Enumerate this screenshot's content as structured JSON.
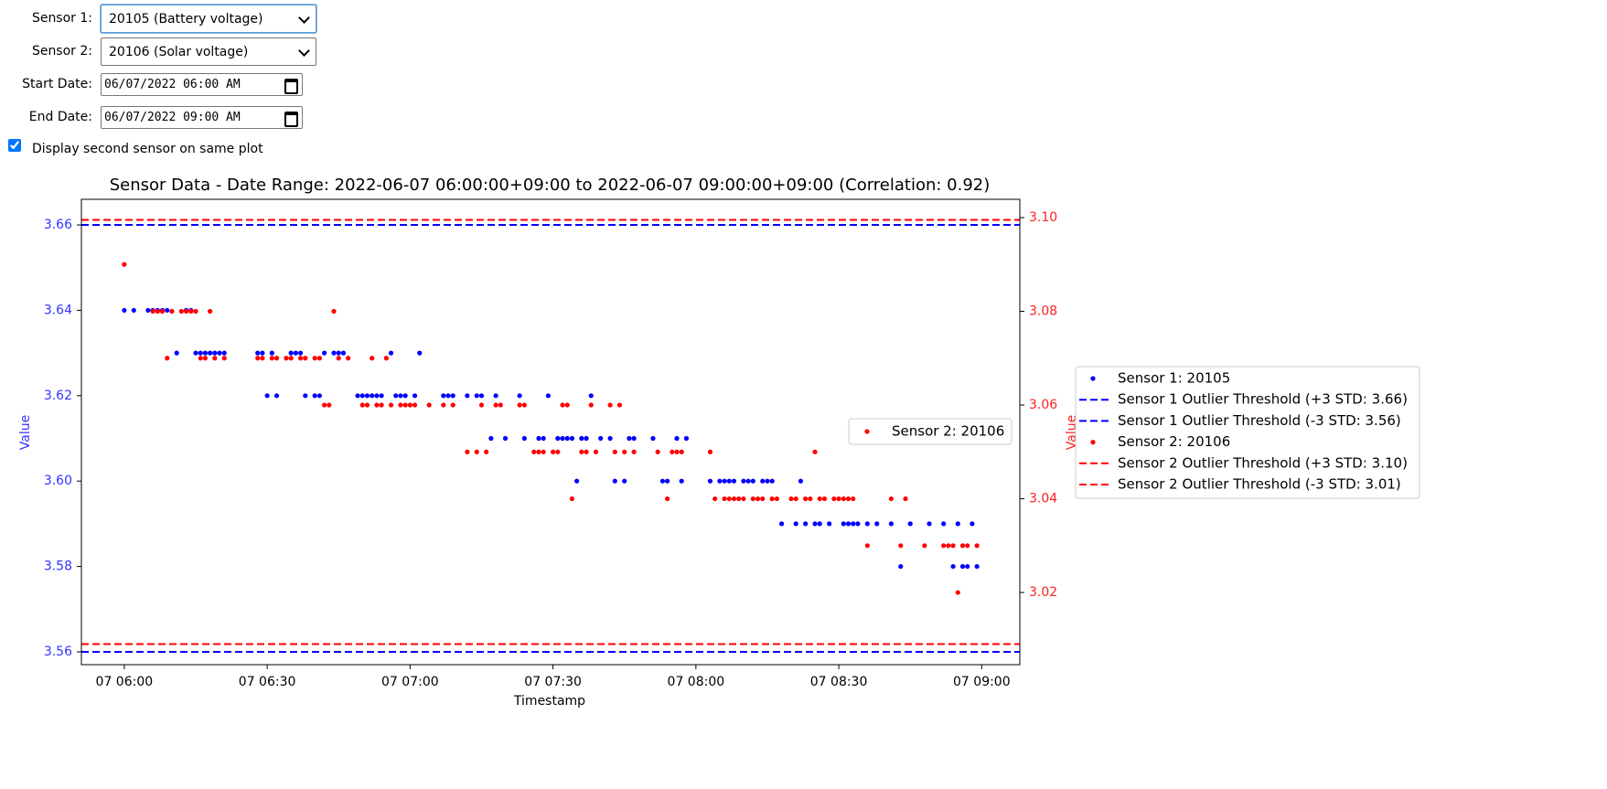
{
  "form": {
    "sensor1_label": "Sensor 1:",
    "sensor1_value": "20105 (Battery voltage)",
    "sensor2_label": "Sensor 2:",
    "sensor2_value": "20106 (Solar voltage)",
    "start_label": "Start Date:",
    "start_value": "06/07/2022 06:00 AM",
    "end_label": "End Date:",
    "end_value": "06/07/2022 09:00 AM",
    "checkbox_label": "Display second sensor on same plot"
  },
  "chart_data": {
    "type": "scatter",
    "title": "Sensor Data - Date Range: 2022-06-07 06:00:00+09:00 to 2022-06-07 09:00:00+09:00 (Correlation: 0.92)",
    "x_label": "Timestamp",
    "y_label": "Value",
    "y2_label": "Value",
    "xlim": [
      "05:51",
      "09:08"
    ],
    "xticks": [
      {
        "value": "06:00",
        "label": "07 06:00"
      },
      {
        "value": "06:30",
        "label": "07 06:30"
      },
      {
        "value": "07:00",
        "label": "07 07:00"
      },
      {
        "value": "07:30",
        "label": "07 07:30"
      },
      {
        "value": "08:00",
        "label": "07 08:00"
      },
      {
        "value": "08:30",
        "label": "07 08:30"
      },
      {
        "value": "09:00",
        "label": "07 09:00"
      }
    ],
    "ylim": [
      3.557,
      3.666
    ],
    "yticks": [
      3.56,
      3.58,
      {
        "value": 3.6,
        "label": "3.60"
      },
      3.62,
      3.64,
      3.66
    ],
    "y_color": "#3333ff",
    "y2lim": [
      3.0046,
      3.1039
    ],
    "y2ticks": [
      3.02,
      3.04,
      3.06,
      3.08,
      {
        "value": 3.1,
        "label": "3.10"
      }
    ],
    "y2_color": "#ff2020",
    "series": [
      {
        "name": "Sensor 1: 20105",
        "color": "#0000ff",
        "axis": "y",
        "x": [
          "06:00",
          "06:02",
          "06:05",
          "06:06",
          "06:07",
          "06:08",
          "06:09",
          "06:11",
          "06:13",
          "06:14",
          "06:15",
          "06:16",
          "06:17",
          "06:18",
          "06:19",
          "06:20",
          "06:21",
          "06:28",
          "06:29",
          "06:30",
          "06:31",
          "06:32",
          "06:35",
          "06:36",
          "06:37",
          "06:38",
          "06:40",
          "06:41",
          "06:42",
          "06:44",
          "06:45",
          "06:46",
          "06:49",
          "06:50",
          "06:51",
          "06:52",
          "06:53",
          "06:54",
          "06:56",
          "06:57",
          "06:58",
          "06:59",
          "07:01",
          "07:02",
          "07:07",
          "07:08",
          "07:09",
          "07:12",
          "07:14",
          "07:15",
          "07:17",
          "07:18",
          "07:20",
          "07:23",
          "07:24",
          "07:27",
          "07:28",
          "07:29",
          "07:31",
          "07:32",
          "07:33",
          "07:34",
          "07:35",
          "07:36",
          "07:37",
          "07:38",
          "07:40",
          "07:42",
          "07:43",
          "07:45",
          "07:46",
          "07:47",
          "07:51",
          "07:53",
          "07:54",
          "07:56",
          "07:57",
          "07:58",
          "08:03",
          "08:05",
          "08:06",
          "08:07",
          "08:08",
          "08:10",
          "08:11",
          "08:12",
          "08:14",
          "08:15",
          "08:16",
          "08:18",
          "08:21",
          "08:22",
          "08:23",
          "08:25",
          "08:26",
          "08:28",
          "08:31",
          "08:32",
          "08:33",
          "08:34",
          "08:36",
          "08:38",
          "08:41",
          "08:43",
          "08:45",
          "08:49",
          "08:52",
          "08:54",
          "08:55",
          "08:56",
          "08:57",
          "08:58",
          "08:59"
        ],
        "values": [
          3.64,
          3.64,
          3.64,
          3.64,
          3.64,
          3.64,
          3.64,
          3.63,
          3.64,
          3.64,
          3.63,
          3.63,
          3.63,
          3.63,
          3.63,
          3.63,
          3.63,
          3.63,
          3.63,
          3.62,
          3.63,
          3.62,
          3.63,
          3.63,
          3.63,
          3.62,
          3.62,
          3.62,
          3.63,
          3.63,
          3.63,
          3.63,
          3.62,
          3.62,
          3.62,
          3.62,
          3.62,
          3.62,
          3.63,
          3.62,
          3.62,
          3.62,
          3.62,
          3.63,
          3.62,
          3.62,
          3.62,
          3.62,
          3.62,
          3.62,
          3.61,
          3.62,
          3.61,
          3.62,
          3.61,
          3.61,
          3.61,
          3.62,
          3.61,
          3.61,
          3.61,
          3.61,
          3.6,
          3.61,
          3.61,
          3.62,
          3.61,
          3.61,
          3.6,
          3.6,
          3.61,
          3.61,
          3.61,
          3.6,
          3.6,
          3.61,
          3.6,
          3.61,
          3.6,
          3.6,
          3.6,
          3.6,
          3.6,
          3.6,
          3.6,
          3.6,
          3.6,
          3.6,
          3.6,
          3.59,
          3.59,
          3.6,
          3.59,
          3.59,
          3.59,
          3.59,
          3.59,
          3.59,
          3.59,
          3.59,
          3.59,
          3.59,
          3.59,
          3.58,
          3.59,
          3.59,
          3.59,
          3.58,
          3.59,
          3.58,
          3.58,
          3.59,
          3.58
        ]
      },
      {
        "name": "Sensor 2: 20106",
        "color": "#ff0000",
        "axis": "y2",
        "x": [
          "06:00",
          "06:06",
          "06:07",
          "06:08",
          "06:09",
          "06:10",
          "06:12",
          "06:13",
          "06:14",
          "06:15",
          "06:16",
          "06:17",
          "06:18",
          "06:19",
          "06:21",
          "06:28",
          "06:29",
          "06:31",
          "06:32",
          "06:34",
          "06:35",
          "06:37",
          "06:38",
          "06:40",
          "06:41",
          "06:42",
          "06:43",
          "06:44",
          "06:45",
          "06:47",
          "06:50",
          "06:51",
          "06:52",
          "06:53",
          "06:54",
          "06:55",
          "06:56",
          "06:58",
          "06:59",
          "07:00",
          "07:01",
          "07:04",
          "07:07",
          "07:09",
          "07:12",
          "07:14",
          "07:15",
          "07:16",
          "07:18",
          "07:19",
          "07:23",
          "07:24",
          "07:26",
          "07:27",
          "07:28",
          "07:30",
          "07:31",
          "07:32",
          "07:33",
          "07:34",
          "07:36",
          "07:37",
          "07:38",
          "07:39",
          "07:42",
          "07:43",
          "07:44",
          "07:45",
          "07:47",
          "07:52",
          "07:54",
          "07:55",
          "07:56",
          "07:57",
          "08:03",
          "08:04",
          "08:06",
          "08:07",
          "08:08",
          "08:09",
          "08:10",
          "08:12",
          "08:13",
          "08:14",
          "08:16",
          "08:17",
          "08:20",
          "08:21",
          "08:23",
          "08:24",
          "08:25",
          "08:26",
          "08:27",
          "08:29",
          "08:30",
          "08:31",
          "08:32",
          "08:33",
          "08:36",
          "08:41",
          "08:43",
          "08:44",
          "08:48",
          "08:52",
          "08:53",
          "08:54",
          "08:55",
          "08:56",
          "08:57",
          "08:59"
        ],
        "values": [
          3.09,
          3.08,
          3.08,
          3.08,
          3.07,
          3.08,
          3.08,
          3.08,
          3.08,
          3.08,
          3.07,
          3.07,
          3.08,
          3.07,
          3.07,
          3.07,
          3.07,
          3.07,
          3.07,
          3.07,
          3.07,
          3.07,
          3.07,
          3.07,
          3.07,
          3.06,
          3.06,
          3.08,
          3.07,
          3.07,
          3.06,
          3.06,
          3.07,
          3.06,
          3.06,
          3.07,
          3.06,
          3.06,
          3.06,
          3.06,
          3.06,
          3.06,
          3.06,
          3.06,
          3.05,
          3.05,
          3.06,
          3.05,
          3.06,
          3.06,
          3.06,
          3.06,
          3.05,
          3.05,
          3.05,
          3.05,
          3.05,
          3.06,
          3.06,
          3.04,
          3.05,
          3.05,
          3.06,
          3.05,
          3.06,
          3.05,
          3.06,
          3.05,
          3.05,
          3.05,
          3.04,
          3.05,
          3.05,
          3.05,
          3.05,
          3.04,
          3.04,
          3.04,
          3.04,
          3.04,
          3.04,
          3.04,
          3.04,
          3.04,
          3.04,
          3.04,
          3.04,
          3.04,
          3.04,
          3.04,
          3.05,
          3.04,
          3.04,
          3.04,
          3.04,
          3.04,
          3.04,
          3.04,
          3.03,
          3.04,
          3.03,
          3.04,
          3.03,
          3.03,
          3.03,
          3.03,
          3.02,
          3.03,
          3.03,
          3.03
        ]
      }
    ],
    "thresholds": [
      {
        "name": "Sensor 1 Outlier Threshold (+3 STD: 3.66)",
        "color": "#0000ff",
        "axis": "y",
        "value": 3.66
      },
      {
        "name": "Sensor 1 Outlier Threshold (-3 STD: 3.56)",
        "color": "#0000ff",
        "axis": "y",
        "value": 3.56
      },
      {
        "name": "Sensor 2 Outlier Threshold (+3 STD: 3.10)",
        "color": "#ff0000",
        "axis": "y2",
        "value": 3.0995
      },
      {
        "name": "Sensor 2 Outlier Threshold (-3 STD: 3.01)",
        "color": "#ff0000",
        "axis": "y2",
        "value": 3.009
      }
    ]
  }
}
